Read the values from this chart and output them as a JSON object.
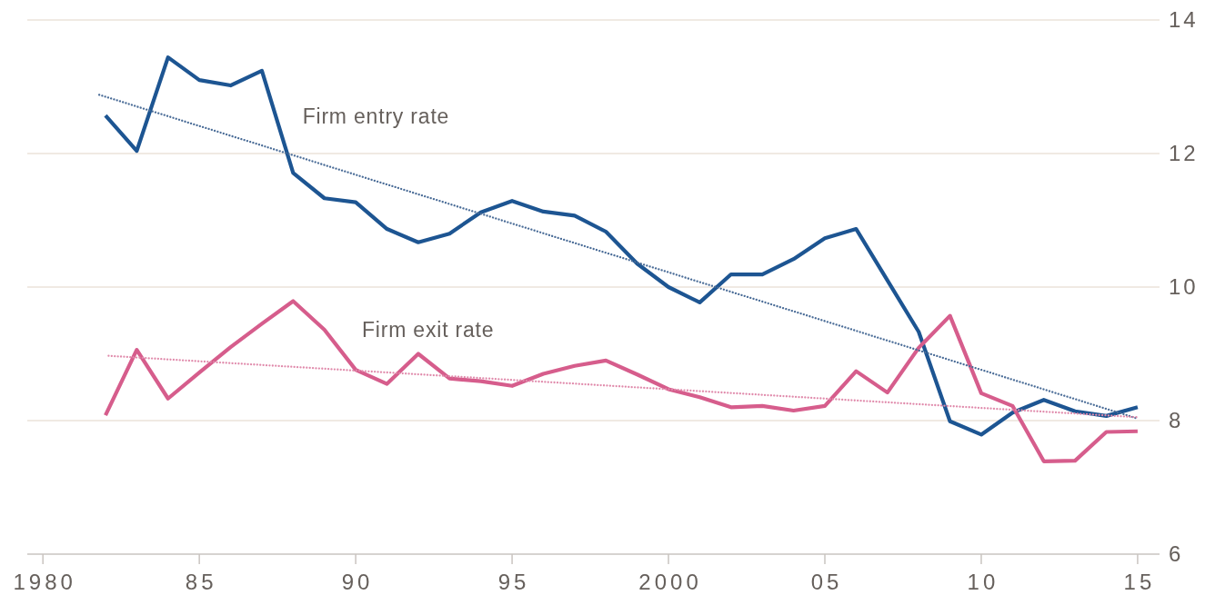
{
  "chart_data": {
    "type": "line",
    "x": [
      1982,
      1983,
      1984,
      1985,
      1986,
      1987,
      1988,
      1989,
      1990,
      1991,
      1992,
      1993,
      1994,
      1995,
      1996,
      1997,
      1998,
      1999,
      2000,
      2001,
      2002,
      2003,
      2004,
      2005,
      2006,
      2007,
      2008,
      2009,
      2010,
      2011,
      2012,
      2013,
      2014,
      2015
    ],
    "series": [
      {
        "name": "Firm entry rate",
        "color": "#1d5592",
        "values": [
          12.57,
          12.04,
          13.44,
          13.1,
          13.02,
          13.24,
          11.71,
          11.33,
          11.27,
          10.87,
          10.67,
          10.8,
          11.12,
          11.29,
          11.13,
          11.07,
          10.83,
          10.35,
          10.0,
          9.77,
          10.19,
          10.19,
          10.42,
          10.73,
          10.87,
          10.1,
          9.33,
          7.99,
          7.79,
          8.12,
          8.31,
          8.14,
          8.07,
          8.2
        ]
      },
      {
        "name": "Firm exit rate",
        "color": "#d65d8c",
        "values": [
          8.08,
          9.06,
          8.33,
          8.72,
          9.1,
          9.45,
          9.79,
          9.36,
          8.76,
          8.55,
          9.0,
          8.63,
          8.59,
          8.52,
          8.7,
          8.82,
          8.9,
          8.69,
          8.47,
          8.35,
          8.2,
          8.22,
          8.15,
          8.22,
          8.74,
          8.42,
          9.09,
          9.57,
          8.41,
          8.22,
          7.39,
          7.4,
          7.83,
          7.84
        ]
      },
      {
        "type": "line",
        "x": [
          1981.8,
          2015
        ],
        "color": "#4a6c97",
        "line_style": "dotted",
        "values": [
          12.88,
          8.03
        ]
      },
      {
        "type": "line",
        "x": [
          1982.1,
          2015
        ],
        "color": "#e08aab",
        "line_style": "dotted",
        "values": [
          8.97,
          8.05
        ]
      }
    ],
    "xlim": [
      1979.5,
      2015.7
    ],
    "xticks": [
      1980,
      {
        "value": 1985,
        "label": "85"
      },
      {
        "value": 1990,
        "label": "90"
      },
      {
        "value": 1995,
        "label": "95"
      },
      2000,
      {
        "value": 2005,
        "label": "05"
      },
      {
        "value": 2010,
        "label": "10"
      },
      {
        "value": 2015,
        "label": "15"
      }
    ],
    "ylim": [
      6,
      14
    ],
    "yticks": [
      6,
      8,
      10,
      12,
      14
    ],
    "grid": "y"
  }
}
